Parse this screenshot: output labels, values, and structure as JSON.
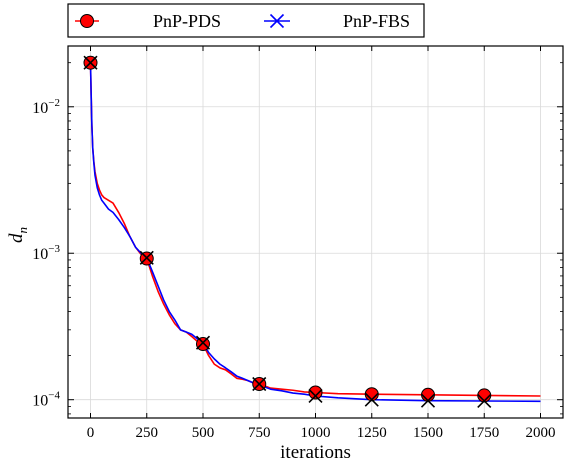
{
  "chart_data": {
    "type": "line",
    "title": "",
    "xlabel": "iterations",
    "ylabel": "d",
    "ylabel_subscript": "n",
    "x_scale": "linear",
    "y_scale": "log",
    "xlim": [
      -100,
      2100
    ],
    "ylim": [
      7.5e-05,
      0.026
    ],
    "grid": true,
    "legend_position": "top (above plot)",
    "x_ticks": [
      0,
      250,
      500,
      750,
      1000,
      1250,
      1500,
      1750,
      2000
    ],
    "y_ticks": [
      {
        "value": 0.0001,
        "base": "10",
        "exponent": "−4"
      },
      {
        "value": 0.001,
        "base": "10",
        "exponent": "−3"
      },
      {
        "value": 0.01,
        "base": "10",
        "exponent": "−2"
      }
    ],
    "series": [
      {
        "name": "PnP-PDS",
        "color": "#ff0000",
        "marker": "circle",
        "marker_fill": "#ff0000",
        "x": [
          0,
          3,
          6,
          10,
          15,
          20,
          30,
          40,
          50,
          60,
          80,
          100,
          125,
          150,
          175,
          200,
          225,
          250,
          275,
          300,
          325,
          350,
          375,
          400,
          425,
          450,
          475,
          500,
          525,
          550,
          575,
          600,
          625,
          650,
          675,
          700,
          725,
          750,
          775,
          800,
          850,
          900,
          950,
          1000,
          1100,
          1250,
          1500,
          1750,
          2000
        ],
        "y": [
          0.02,
          0.012,
          0.0075,
          0.0052,
          0.0042,
          0.0036,
          0.003,
          0.0027,
          0.0025,
          0.0024,
          0.0023,
          0.0022,
          0.0019,
          0.0016,
          0.0013,
          0.0011,
          0.00098,
          0.00092,
          0.0007,
          0.00055,
          0.00045,
          0.00038,
          0.00033,
          0.0003,
          0.00029,
          0.00027,
          0.00025,
          0.00024,
          0.0002,
          0.000175,
          0.000165,
          0.00016,
          0.00015,
          0.00014,
          0.000138,
          0.000135,
          0.00013,
          0.000128,
          0.000124,
          0.00012,
          0.000118,
          0.000116,
          0.000113,
          0.000112,
          0.00011,
          0.000109,
          0.000108,
          0.000107,
          0.000106
        ],
        "marker_x": [
          0,
          250,
          500,
          750,
          1000,
          1250,
          1500,
          1750
        ]
      },
      {
        "name": "PnP-FBS",
        "color": "#0000ff",
        "marker": "x",
        "marker_fill": "#000000",
        "x": [
          0,
          3,
          6,
          10,
          15,
          20,
          30,
          40,
          50,
          60,
          80,
          100,
          125,
          150,
          175,
          200,
          225,
          250,
          275,
          300,
          325,
          350,
          375,
          400,
          425,
          450,
          475,
          500,
          525,
          550,
          575,
          600,
          625,
          650,
          675,
          700,
          725,
          750,
          775,
          800,
          850,
          900,
          950,
          1000,
          1100,
          1250,
          1500,
          1750,
          2000
        ],
        "y": [
          0.02,
          0.012,
          0.0075,
          0.0052,
          0.0041,
          0.0034,
          0.0028,
          0.0025,
          0.0023,
          0.0022,
          0.002,
          0.0019,
          0.0017,
          0.0015,
          0.0013,
          0.0011,
          0.001,
          0.00093,
          0.00075,
          0.0006,
          0.00048,
          0.0004,
          0.00035,
          0.0003,
          0.00029,
          0.00028,
          0.00026,
          0.000245,
          0.00021,
          0.00019,
          0.000175,
          0.000165,
          0.000155,
          0.000145,
          0.00014,
          0.000135,
          0.00013,
          0.000128,
          0.000122,
          0.000118,
          0.000115,
          0.000111,
          0.000109,
          0.000106,
          0.000103,
          0.0001,
          9.85e-05,
          9.8e-05,
          9.75e-05
        ],
        "marker_x": [
          0,
          250,
          500,
          750,
          1000,
          1250,
          1500,
          1750
        ]
      }
    ]
  }
}
